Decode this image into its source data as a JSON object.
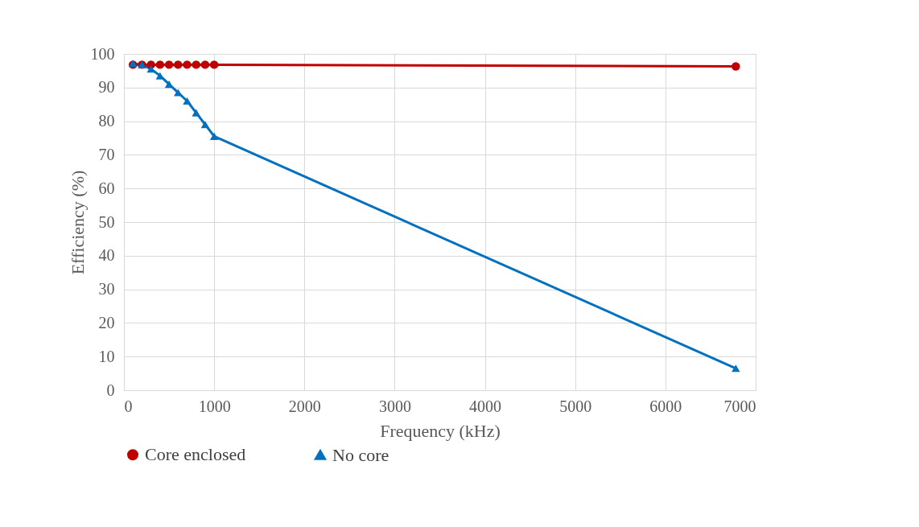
{
  "chart_data": {
    "type": "line",
    "xlabel": "Frequency (kHz)",
    "ylabel": "Efficiency (%)",
    "xlim": [
      0,
      7000
    ],
    "xticks": [
      0,
      1000,
      2000,
      3000,
      4000,
      5000,
      6000,
      7000
    ],
    "ylim": [
      0,
      100
    ],
    "yticks": [
      0,
      10,
      20,
      30,
      40,
      50,
      60,
      70,
      80,
      90,
      100
    ],
    "grid": true,
    "legend": "bottom",
    "series": [
      {
        "name": "Core enclosed",
        "color": "#c00000",
        "marker": "circle",
        "x": [
          100,
          200,
          300,
          400,
          500,
          600,
          700,
          800,
          900,
          1000,
          6780
        ],
        "values": [
          96.8,
          96.8,
          96.8,
          96.8,
          96.8,
          96.8,
          96.8,
          96.8,
          96.8,
          96.8,
          96.3
        ]
      },
      {
        "name": "No core",
        "color": "#0070c0",
        "marker": "triangle",
        "x": [
          100,
          200,
          300,
          400,
          500,
          600,
          700,
          800,
          900,
          1000,
          6780
        ],
        "values": [
          97.2,
          96.8,
          95.5,
          93.5,
          91,
          88.5,
          86,
          82.5,
          79,
          75.5,
          6.5
        ]
      }
    ]
  }
}
